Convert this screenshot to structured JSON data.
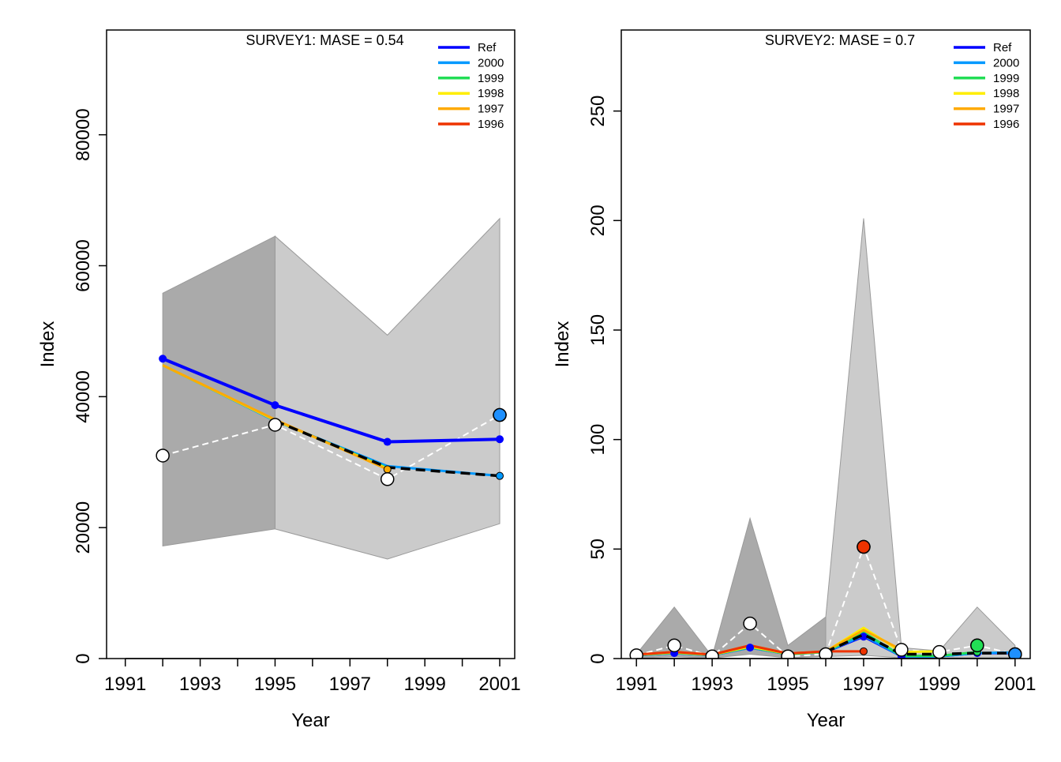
{
  "chart_data": [
    {
      "type": "line",
      "title": "SURVEY1: MASE = 0.54",
      "xlabel": "Year",
      "ylabel": "Index",
      "xlim": [
        1990.5,
        2001.4
      ],
      "ylim": [
        0,
        96000
      ],
      "x_ticks": [
        1991,
        1992,
        1993,
        1994,
        1995,
        1996,
        1997,
        1998,
        1999,
        2000,
        2001
      ],
      "x_tick_labels": [
        "1991",
        "1993",
        "1995",
        "1997",
        "1999",
        "2001"
      ],
      "y_ticks": [
        0,
        20000,
        40000,
        60000,
        80000
      ],
      "y_tick_labels": [
        "0",
        "20000",
        "40000",
        "60000",
        "80000"
      ],
      "legend_position": "top-right",
      "legend": [
        {
          "label": "Ref",
          "color": "#0000ff"
        },
        {
          "label": "2000",
          "color": "#0099ff"
        },
        {
          "label": "1999",
          "color": "#22dd55"
        },
        {
          "label": "1998",
          "color": "#ffee00"
        },
        {
          "label": "1997",
          "color": "#ffaa00"
        },
        {
          "label": "1996",
          "color": "#ee3300"
        }
      ],
      "bands": [
        {
          "fill": "#aaaaaa",
          "x": [
            1992,
            1995
          ],
          "lower": [
            17200,
            19800
          ],
          "upper": [
            55800,
            64500
          ]
        },
        {
          "fill": "#cbcbcb",
          "x": [
            1995,
            1998,
            2001
          ],
          "lower": [
            19800,
            15200,
            20600
          ],
          "upper": [
            64500,
            49400,
            67200
          ]
        }
      ],
      "observed": {
        "x": [
          1992,
          1995,
          1998,
          2001
        ],
        "y": [
          31000,
          35700,
          27400,
          37200
        ]
      },
      "highlight_point": {
        "x": 2001,
        "y": 37200,
        "color": "#1e90ff"
      },
      "series": [
        {
          "name": "Ref",
          "color": "#0000ff",
          "width": 4,
          "x": [
            1992,
            1995,
            1998,
            2001
          ],
          "y": [
            45800,
            38700,
            33100,
            33500
          ]
        },
        {
          "name": "2000",
          "color": "#0099ff",
          "width": 3,
          "x": [
            1992,
            1995,
            1998,
            2001
          ],
          "y": [
            44800,
            36300,
            29400,
            27900
          ]
        },
        {
          "name": "1999",
          "color": "#22dd55",
          "width": 3,
          "x": [
            1992,
            1995,
            1998
          ],
          "y": [
            44800,
            36400,
            29100
          ]
        },
        {
          "name": "1998",
          "color": "#ffee00",
          "width": 3,
          "x": [
            1992,
            1995,
            1998
          ],
          "y": [
            44800,
            36400,
            29000
          ]
        },
        {
          "name": "1997",
          "color": "#ffaa00",
          "width": 3,
          "x": [
            1992,
            1995,
            1998
          ],
          "y": [
            44800,
            36500,
            28900
          ]
        }
      ],
      "retro_dashed": {
        "x": [
          1995,
          1998,
          2001
        ],
        "y": [
          36300,
          29200,
          27900
        ]
      },
      "end_points": [
        {
          "x": 1998,
          "y": 28900,
          "color": "#ffaa00"
        },
        {
          "x": 2001,
          "y": 27900,
          "color": "#0099ff"
        }
      ]
    },
    {
      "type": "line",
      "title": "SURVEY2: MASE = 0.7",
      "xlabel": "Year",
      "ylabel": "Index",
      "xlim": [
        1990.6,
        2001.4
      ],
      "ylim": [
        0,
        287
      ],
      "x_ticks": [
        1991,
        1992,
        1993,
        1994,
        1995,
        1996,
        1997,
        1998,
        1999,
        2000,
        2001
      ],
      "x_tick_labels": [
        "1991",
        "1993",
        "1995",
        "1997",
        "1999",
        "2001"
      ],
      "y_ticks": [
        0,
        50,
        100,
        150,
        200,
        250
      ],
      "y_tick_labels": [
        "0",
        "50",
        "100",
        "150",
        "200",
        "250"
      ],
      "legend_position": "top-right",
      "legend": [
        {
          "label": "Ref",
          "color": "#0000ff"
        },
        {
          "label": "2000",
          "color": "#0099ff"
        },
        {
          "label": "1999",
          "color": "#22dd55"
        },
        {
          "label": "1998",
          "color": "#ffee00"
        },
        {
          "label": "1997",
          "color": "#ffaa00"
        },
        {
          "label": "1996",
          "color": "#ee3300"
        }
      ],
      "bands": [
        {
          "fill": "#aaaaaa",
          "x": [
            1991,
            1992,
            1993,
            1994,
            1995,
            1996
          ],
          "lower": [
            0.3,
            0.8,
            0.2,
            2,
            0.3,
            0.9
          ],
          "upper": [
            2,
            23.5,
            1,
            64,
            6,
            19
          ]
        },
        {
          "fill": "#cbcbcb",
          "x": [
            1996,
            1997,
            1998,
            1999,
            2000,
            2001
          ],
          "lower": [
            0.9,
            1.5,
            0.3,
            0.3,
            0.4,
            0.5
          ],
          "upper": [
            19,
            201,
            5,
            3.5,
            23.5,
            6
          ]
        }
      ],
      "observed": {
        "x": [
          1991,
          1992,
          1993,
          1994,
          1995,
          1996,
          1997,
          1998,
          1999,
          2000,
          2001
        ],
        "y": [
          1.5,
          6,
          1,
          16,
          1,
          2,
          51,
          4,
          3,
          6,
          2
        ]
      },
      "highlight_points": [
        {
          "x": 1997,
          "y": 51,
          "color": "#ee3300"
        },
        {
          "x": 2000,
          "y": 6,
          "color": "#22dd55"
        },
        {
          "x": 2001,
          "y": 2,
          "color": "#1e90ff"
        }
      ],
      "series": [
        {
          "name": "Ref",
          "color": "#0000ff",
          "width": 3,
          "x": [
            1991,
            1992,
            1993,
            1994,
            1995,
            1996,
            1997,
            1998,
            1999,
            2000,
            2001
          ],
          "y": [
            1.5,
            2.5,
            1.5,
            5,
            2,
            3,
            10,
            1,
            1,
            2.5,
            2.5
          ]
        },
        {
          "name": "2000",
          "color": "#0099ff",
          "width": 3,
          "x": [
            1991,
            1992,
            1993,
            1994,
            1995,
            1996,
            1997,
            1998,
            1999,
            2000,
            2001
          ],
          "y": [
            1.5,
            2.5,
            1.5,
            5,
            2,
            3,
            10.5,
            1,
            1,
            2.5,
            2.8
          ]
        },
        {
          "name": "1999",
          "color": "#22dd55",
          "width": 3,
          "x": [
            1991,
            1992,
            1993,
            1994,
            1995,
            1996,
            1997,
            1998,
            1999,
            2000
          ],
          "y": [
            1.6,
            2.6,
            1.6,
            5.2,
            2,
            3,
            12,
            1.2,
            1.2,
            3
          ]
        },
        {
          "name": "1998",
          "color": "#ffee00",
          "width": 3,
          "x": [
            1991,
            1992,
            1993,
            1994,
            1995,
            1996,
            1997,
            1998,
            1999
          ],
          "y": [
            1.7,
            2.8,
            1.7,
            5.5,
            2.2,
            3.2,
            14,
            3,
            3.3
          ]
        },
        {
          "name": "1997",
          "color": "#ffaa00",
          "width": 3,
          "x": [
            1991,
            1992,
            1993,
            1994,
            1995,
            1996,
            1997,
            1998
          ],
          "y": [
            1.8,
            3,
            1.8,
            6,
            2.3,
            3.3,
            13,
            4
          ]
        },
        {
          "name": "1996",
          "color": "#ee3300",
          "width": 3,
          "x": [
            1991,
            1992,
            1993,
            1994,
            1995,
            1996,
            1997
          ],
          "y": [
            1.8,
            3,
            1.8,
            6,
            2.3,
            3.3,
            3.3
          ]
        }
      ],
      "retro_dashed": {
        "x": [
          1996,
          1997,
          1998,
          1999,
          2000,
          2001
        ],
        "y": [
          3,
          11,
          2,
          2,
          2.5,
          2.5
        ]
      },
      "end_points": [
        {
          "x": 1997,
          "y": 3.3,
          "color": "#ee3300"
        },
        {
          "x": 1998,
          "y": 4,
          "color": "#ffaa00"
        },
        {
          "x": 1999,
          "y": 3.3,
          "color": "#ffee00"
        },
        {
          "x": 2000,
          "y": 3,
          "color": "#22dd55"
        },
        {
          "x": 2001,
          "y": 2.8,
          "color": "#0099ff"
        }
      ]
    }
  ]
}
